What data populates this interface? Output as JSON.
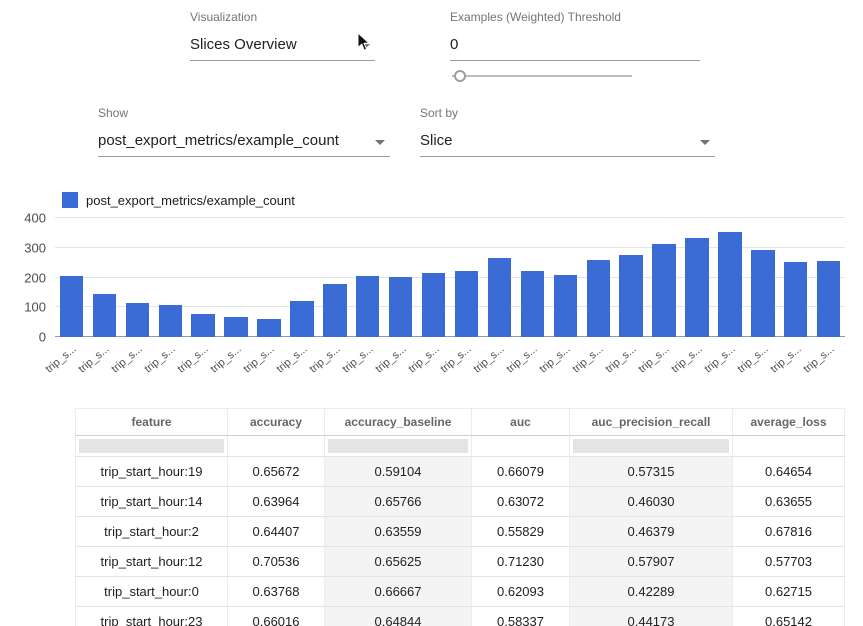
{
  "controls": {
    "visualization": {
      "label": "Visualization",
      "value": "Slices Overview"
    },
    "threshold": {
      "label": "Examples (Weighted) Threshold",
      "value": "0",
      "slider_value": 0
    },
    "show": {
      "label": "Show",
      "value": "post_export_metrics/example_count"
    },
    "sort_by": {
      "label": "Sort by",
      "value": "Slice"
    }
  },
  "chart_data": {
    "type": "bar",
    "legend": "post_export_metrics/example_count",
    "bar_color": "#3B6CD6",
    "ylim": [
      0,
      400
    ],
    "yticks": [
      0,
      100,
      200,
      300,
      400
    ],
    "grid": true,
    "legend_position": "top-left",
    "categories": [
      "trip_s...",
      "trip_s...",
      "trip_s...",
      "trip_s...",
      "trip_s...",
      "trip_s...",
      "trip_s...",
      "trip_s...",
      "trip_s...",
      "trip_s...",
      "trip_s...",
      "trip_s...",
      "trip_s...",
      "trip_s...",
      "trip_s...",
      "trip_s...",
      "trip_s...",
      "trip_s...",
      "trip_s...",
      "trip_s...",
      "trip_s...",
      "trip_s...",
      "trip_s...",
      "trip_s..."
    ],
    "values": [
      205,
      143,
      114,
      108,
      76,
      66,
      59,
      120,
      178,
      205,
      202,
      215,
      222,
      265,
      222,
      210,
      260,
      277,
      313,
      332,
      352,
      291,
      253,
      255
    ]
  },
  "table": {
    "columns": [
      "feature",
      "accuracy",
      "accuracy_baseline",
      "auc",
      "auc_precision_recall",
      "average_loss"
    ],
    "rows": [
      [
        "trip_start_hour:19",
        "0.65672",
        "0.59104",
        "0.66079",
        "0.57315",
        "0.64654"
      ],
      [
        "trip_start_hour:14",
        "0.63964",
        "0.65766",
        "0.63072",
        "0.46030",
        "0.63655"
      ],
      [
        "trip_start_hour:2",
        "0.64407",
        "0.63559",
        "0.55829",
        "0.46379",
        "0.67816"
      ],
      [
        "trip_start_hour:12",
        "0.70536",
        "0.65625",
        "0.71230",
        "0.57907",
        "0.57703"
      ],
      [
        "trip_start_hour:0",
        "0.63768",
        "0.66667",
        "0.62093",
        "0.42289",
        "0.62715"
      ],
      [
        "trip_start_hour:23",
        "0.66016",
        "0.64844",
        "0.58337",
        "0.44173",
        "0.65142"
      ]
    ]
  }
}
